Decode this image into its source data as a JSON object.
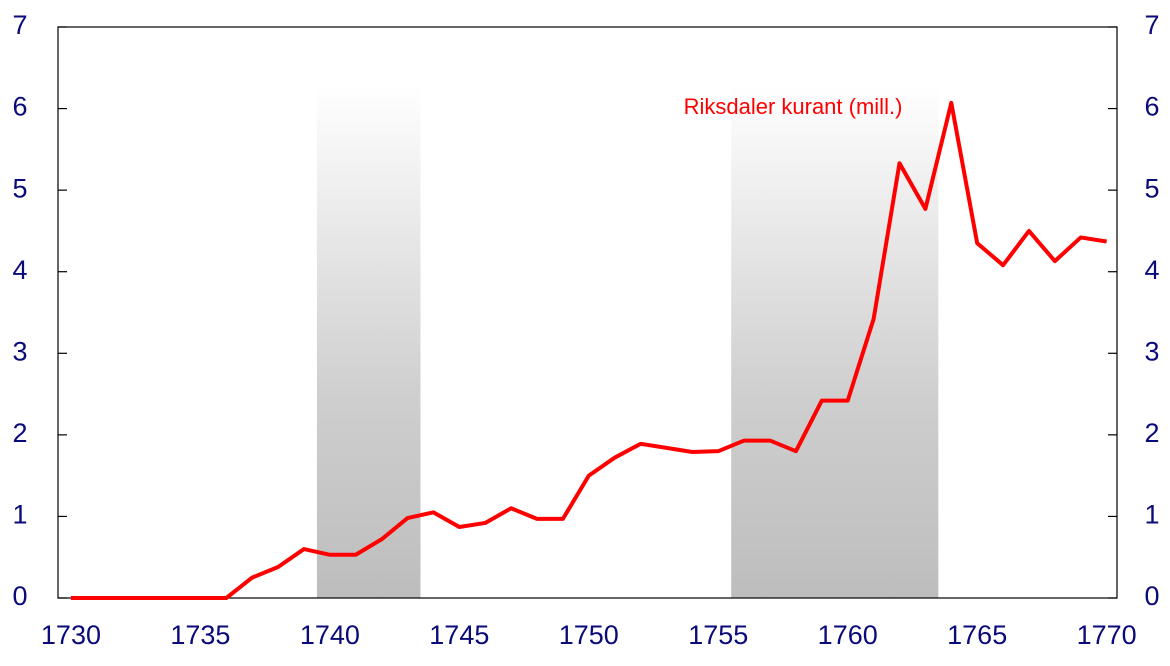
{
  "chart_data": {
    "type": "line",
    "x": [
      1730,
      1731,
      1732,
      1733,
      1734,
      1735,
      1736,
      1737,
      1738,
      1739,
      1740,
      1741,
      1742,
      1743,
      1744,
      1745,
      1746,
      1747,
      1748,
      1749,
      1750,
      1751,
      1752,
      1753,
      1754,
      1755,
      1756,
      1757,
      1758,
      1759,
      1760,
      1761,
      1762,
      1763,
      1764,
      1765,
      1766,
      1767,
      1768,
      1769,
      1770
    ],
    "series": [
      {
        "name": "Riksdaler kurant (mill.)",
        "color": "#ff0000",
        "values": [
          0,
          0,
          0,
          0,
          0,
          0,
          0,
          0.25,
          0.38,
          0.6,
          0.53,
          0.53,
          0.72,
          0.98,
          1.05,
          0.87,
          0.92,
          1.1,
          0.97,
          0.97,
          1.5,
          1.72,
          1.89,
          1.84,
          1.79,
          1.8,
          1.93,
          1.93,
          1.8,
          2.42,
          2.42,
          3.42,
          5.33,
          4.77,
          6.07,
          4.35,
          4.08,
          4.5,
          4.13,
          4.42,
          4.37
        ]
      }
    ],
    "shaded_ranges": [
      [
        1739.5,
        1743.5
      ],
      [
        1755.5,
        1763.5
      ]
    ],
    "shaded_top": 6.3,
    "xlim": [
      1729.5,
      1770.4
    ],
    "xticks": [
      1730,
      1735,
      1740,
      1745,
      1750,
      1755,
      1760,
      1765,
      1770
    ],
    "ylim": [
      0,
      7
    ],
    "yticks": [
      0,
      1,
      2,
      3,
      4,
      5,
      6,
      7
    ],
    "y2lim": [
      0,
      7
    ],
    "y2ticks": [
      0,
      1,
      2,
      3,
      4,
      5,
      6,
      7
    ]
  }
}
